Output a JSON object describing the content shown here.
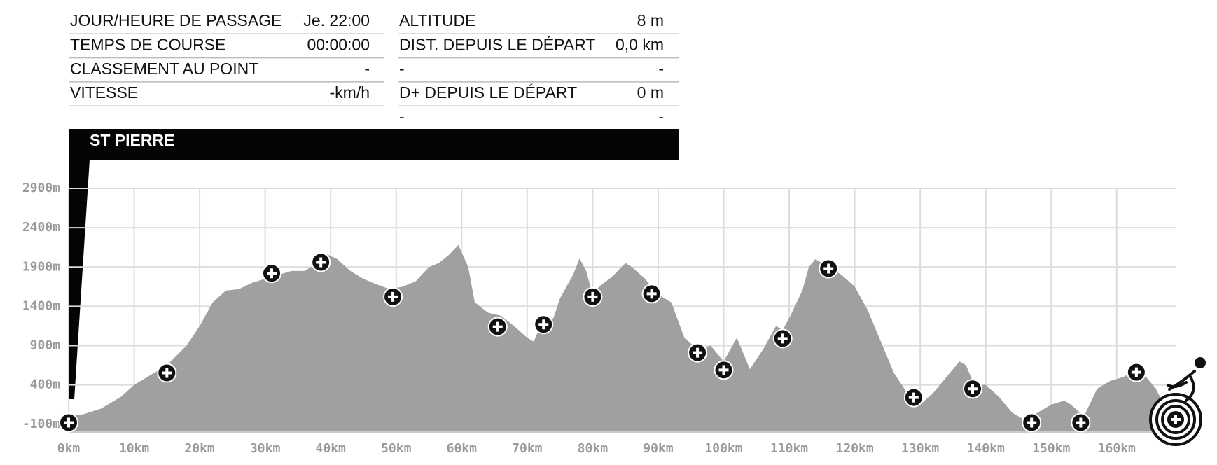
{
  "info": {
    "left": [
      [
        "JOUR/HEURE DE PASSAGE",
        "Je. 22:00"
      ],
      [
        "TEMPS DE COURSE",
        "00:00:00"
      ],
      [
        "CLASSEMENT AU POINT",
        "-"
      ],
      [
        "VITESSE",
        "-km/h"
      ]
    ],
    "right": [
      [
        "ALTITUDE",
        "8 m"
      ],
      [
        "DIST. DEPUIS LE DÉPART",
        "0,0 km"
      ],
      [
        "-",
        "-"
      ],
      [
        "D+ DEPUIS LE DÉPART",
        "0 m"
      ],
      [
        "-",
        "-"
      ]
    ]
  },
  "location": "ST PIERRE",
  "chart_data": {
    "type": "area",
    "color": "#a0a0a0",
    "grid": true,
    "x": [
      0,
      2,
      5,
      8,
      10,
      13,
      15,
      18,
      20,
      22,
      24,
      26,
      28,
      30,
      32,
      34,
      36,
      38,
      39.5,
      41,
      43,
      45,
      47,
      49,
      51,
      53,
      55,
      56.5,
      58,
      59.5,
      61,
      62,
      64,
      66,
      68,
      70,
      71,
      72,
      74,
      75,
      77,
      78,
      79,
      80,
      81,
      83,
      85,
      86,
      88,
      90,
      92,
      94,
      96,
      98,
      99,
      100,
      101,
      102,
      103,
      104,
      106,
      108,
      109,
      110,
      112,
      113,
      114,
      116,
      118,
      120,
      122,
      124,
      126,
      128,
      129,
      130,
      132,
      134,
      136,
      137,
      138,
      139,
      140,
      142,
      144,
      146,
      148,
      150,
      152,
      153,
      155,
      157,
      159,
      161,
      163,
      164,
      166,
      167.5,
      169
    ],
    "values": [
      8,
      20,
      100,
      250,
      400,
      550,
      650,
      900,
      1150,
      1450,
      1600,
      1620,
      1700,
      1750,
      1800,
      1850,
      1850,
      1950,
      2060,
      2000,
      1850,
      1750,
      1680,
      1620,
      1650,
      1720,
      1900,
      1950,
      2050,
      2180,
      1900,
      1450,
      1320,
      1280,
      1150,
      1000,
      950,
      1150,
      1250,
      1500,
      1800,
      2010,
      1850,
      1550,
      1650,
      1780,
      1950,
      1900,
      1750,
      1550,
      1450,
      1000,
      850,
      900,
      800,
      700,
      850,
      1000,
      800,
      600,
      850,
      1150,
      1100,
      1250,
      1600,
      1900,
      2000,
      1900,
      1800,
      1650,
      1350,
      950,
      550,
      300,
      200,
      150,
      300,
      500,
      700,
      650,
      450,
      400,
      400,
      250,
      50,
      -50,
      50,
      150,
      200,
      150,
      0,
      350,
      450,
      500,
      600,
      550,
      350,
      100,
      -50
    ],
    "checkpoints": {
      "x": [
        0,
        15,
        31,
        38.5,
        49.5,
        65.5,
        72.5,
        80,
        89,
        96,
        100,
        109,
        116,
        129,
        138,
        147,
        154.5,
        163,
        169
      ],
      "values": [
        -80,
        553,
        1820,
        1960,
        1520,
        1140,
        1170,
        1520,
        1560,
        810,
        590,
        990,
        1880,
        240,
        350,
        -80,
        -80,
        560,
        -40
      ]
    },
    "xlim": [
      0,
      169
    ],
    "ylim": [
      -200,
      2900
    ],
    "xticks": [
      {
        "value": 0,
        "label": "0km"
      },
      {
        "value": 10,
        "label": "10km"
      },
      {
        "value": 20,
        "label": "20km"
      },
      {
        "value": 30,
        "label": "30km"
      },
      {
        "value": 40,
        "label": "40km"
      },
      {
        "value": 50,
        "label": "50km"
      },
      {
        "value": 60,
        "label": "60km"
      },
      {
        "value": 70,
        "label": "70km"
      },
      {
        "value": 80,
        "label": "80km"
      },
      {
        "value": 90,
        "label": "90km"
      },
      {
        "value": 100,
        "label": "100km"
      },
      {
        "value": 110,
        "label": "110km"
      },
      {
        "value": 120,
        "label": "120km"
      },
      {
        "value": 130,
        "label": "130km"
      },
      {
        "value": 140,
        "label": "140km"
      },
      {
        "value": 150,
        "label": "150km"
      },
      {
        "value": 160,
        "label": "160km"
      }
    ],
    "yticks": [
      {
        "value": -100,
        "label": "-100m"
      },
      {
        "value": 400,
        "label": "400m"
      },
      {
        "value": 900,
        "label": "900m"
      },
      {
        "value": 1400,
        "label": "1400m"
      },
      {
        "value": 1900,
        "label": "1900m"
      },
      {
        "value": 2400,
        "label": "2400m"
      },
      {
        "value": 2900,
        "label": "2900m"
      }
    ]
  }
}
